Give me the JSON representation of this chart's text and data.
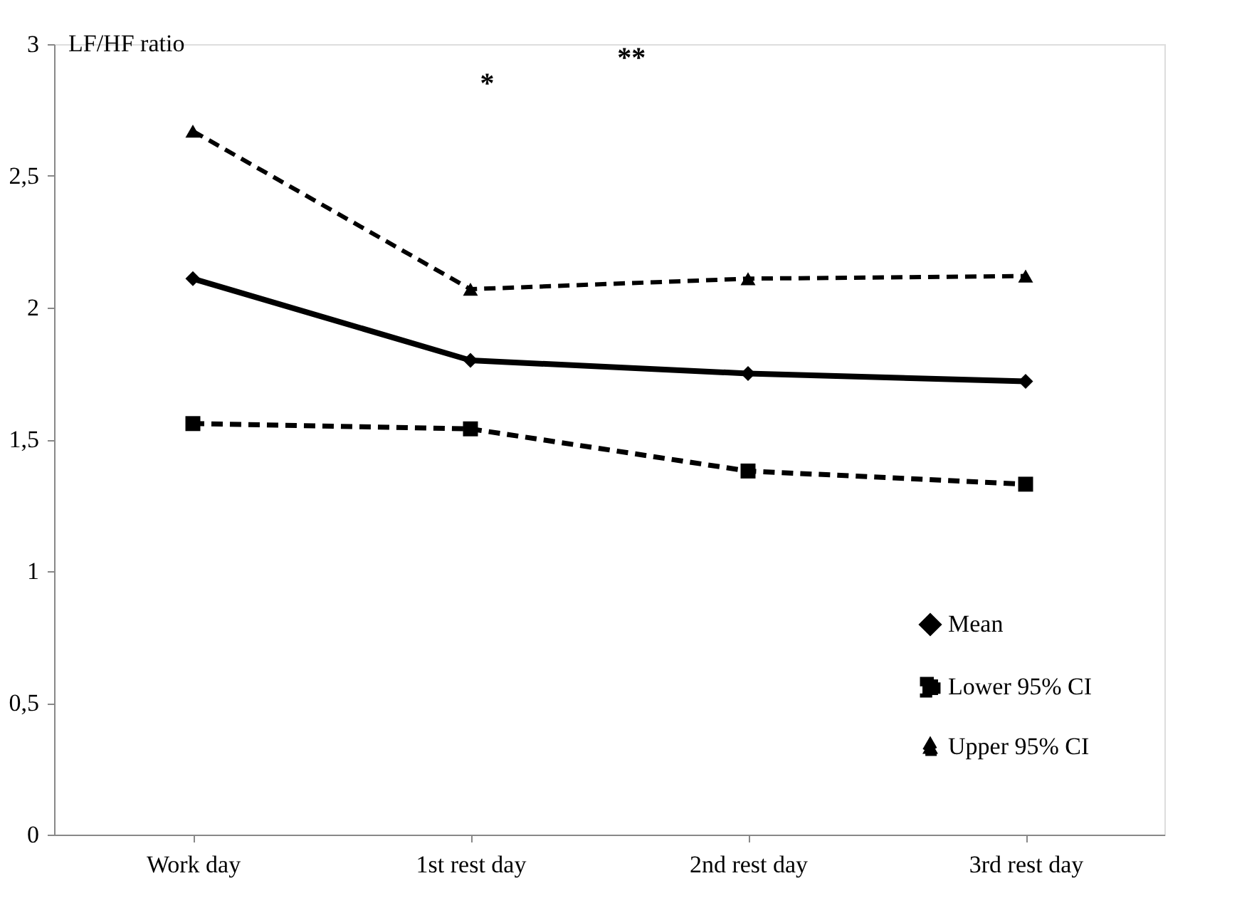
{
  "chart_data": {
    "type": "line",
    "ylabel": "LF/HF ratio",
    "categories": [
      "Work day",
      "1st rest day",
      "2nd rest day",
      "3rd rest day"
    ],
    "series": [
      {
        "name": "Mean",
        "color": "#000000",
        "values": [
          2.11,
          1.8,
          1.75,
          1.72
        ],
        "marker": "diamond",
        "line_style": "solid"
      },
      {
        "name": "Lower 95% CI",
        "color": "#000000",
        "values": [
          1.56,
          1.54,
          1.38,
          1.33
        ],
        "marker": "square",
        "line_style": "dashed"
      },
      {
        "name": "Upper 95% CI",
        "color": "#000000",
        "values": [
          2.67,
          2.07,
          2.11,
          2.12
        ],
        "marker": "triangle",
        "line_style": "dashed"
      }
    ],
    "ylim": [
      0,
      3
    ],
    "yticks": [
      0,
      {
        "value": 0.5,
        "label": "0,5"
      },
      1,
      {
        "value": 1.5,
        "label": "1,5"
      },
      2,
      {
        "value": 2.5,
        "label": "2,5"
      },
      3
    ],
    "annotations": [
      "*",
      "**"
    ],
    "grid": false,
    "legend": "bottom right"
  }
}
